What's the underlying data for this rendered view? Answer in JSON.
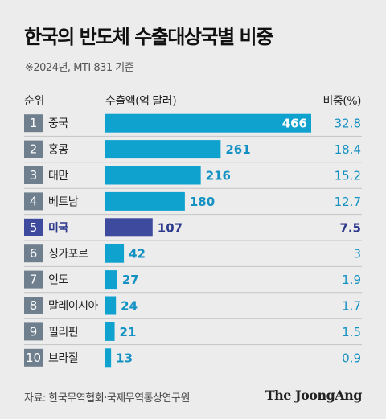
{
  "title": "한국의 반도체 수출대상국별 비중",
  "subtitle": "※2024년, MTI 831 기준",
  "headers": {
    "rank": "순위",
    "export": "수출액(억 달러)",
    "share": "비중(%)"
  },
  "source": "자료: 한국무역협회·국제무역통상연구원",
  "brand": "The JoongAng",
  "colors": {
    "bar": "#10a2cf",
    "highlight_bar": "#3d4a9e",
    "rank_box": "#6f7f8e",
    "highlight_rank_box": "#3d4a9e",
    "value_text": "#1391c2",
    "highlight_text": "#2e3a8c",
    "row_divider": "#c4c4c4"
  },
  "chart_data": {
    "type": "bar",
    "orientation": "horizontal",
    "xlim": [
      0,
      466
    ],
    "highlight": "미국",
    "ranks": [
      "1",
      "2",
      "3",
      "4",
      "5",
      "6",
      "7",
      "8",
      "9",
      "10"
    ],
    "categories": [
      "중국",
      "홍콩",
      "대만",
      "베트남",
      "미국",
      "싱가포르",
      "인도",
      "말레이시아",
      "필리핀",
      "브라질"
    ],
    "values": [
      466,
      261,
      216,
      180,
      107,
      42,
      27,
      24,
      21,
      13
    ],
    "value_labels": [
      "466",
      "261",
      "216",
      "180",
      "107",
      "42",
      "27",
      "24",
      "21",
      "13"
    ],
    "shares": [
      "32.8",
      "18.4",
      "15.2",
      "12.7",
      "7.5",
      "3",
      "1.9",
      "1.7",
      "1.5",
      "0.9"
    ]
  }
}
